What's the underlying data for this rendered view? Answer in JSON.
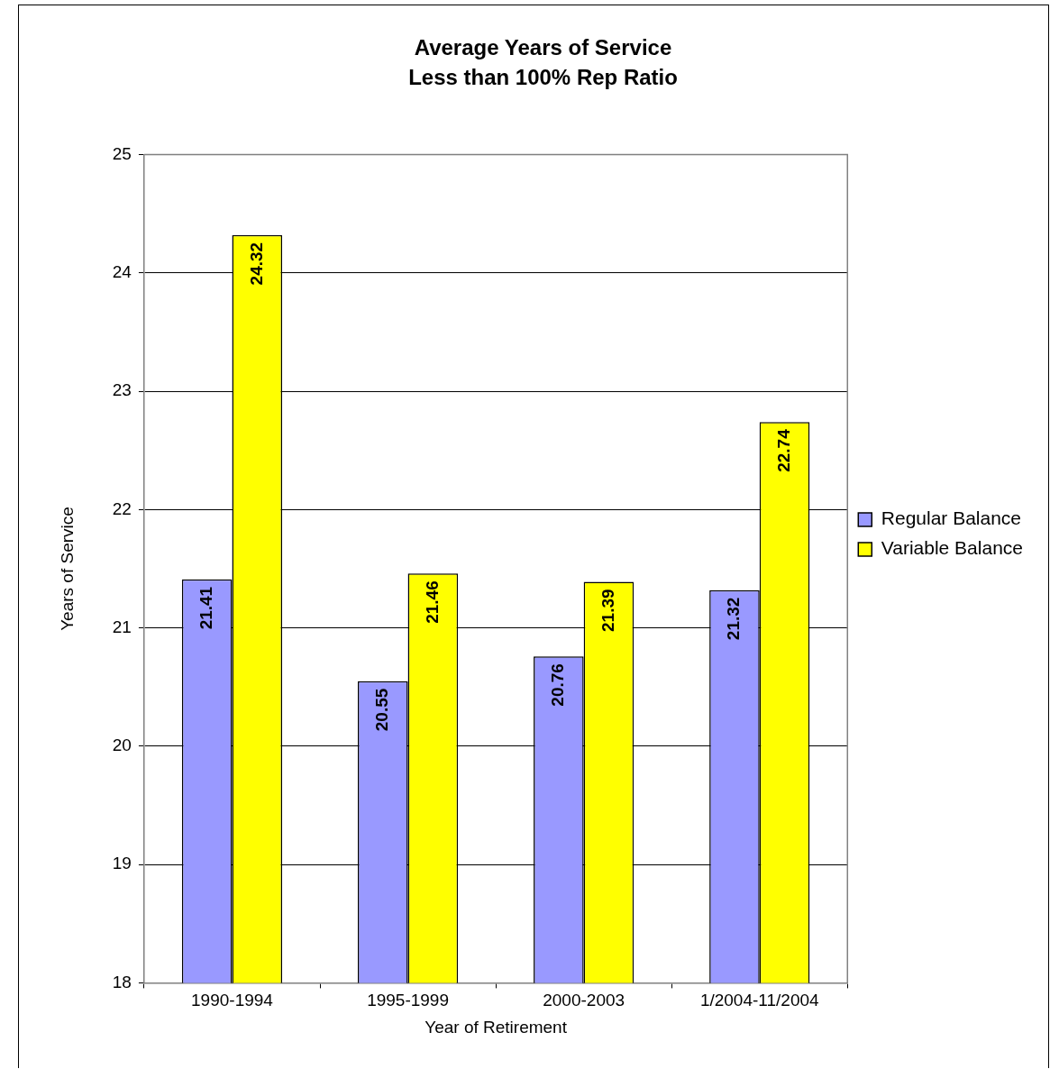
{
  "chart_data": {
    "type": "bar",
    "title": "Average Years of Service",
    "subtitle": "Less than 100% Rep Ratio",
    "xlabel": "Year of Retirement",
    "ylabel": "Years of Service",
    "categories": [
      "1990-1994",
      "1995-1999",
      "2000-2003",
      "1/2004-11/2004"
    ],
    "series": [
      {
        "name": "Regular Balance",
        "color": "#9999ff",
        "values": [
          21.41,
          20.55,
          20.76,
          21.32
        ]
      },
      {
        "name": "Variable Balance",
        "color": "#ffff00",
        "values": [
          24.32,
          21.46,
          21.39,
          22.74
        ]
      }
    ],
    "ylim": [
      18,
      25
    ],
    "yticks": [
      18,
      19,
      20,
      21,
      22,
      23,
      24,
      25
    ],
    "grid": "y",
    "legend": "right",
    "data_labels": true
  }
}
